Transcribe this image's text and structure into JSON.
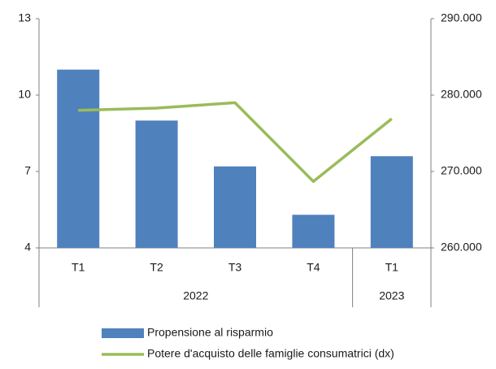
{
  "chart_data": {
    "type": "bar",
    "categories": [
      "T1",
      "T2",
      "T3",
      "T4",
      "T1"
    ],
    "x_groups": [
      {
        "label": "2022",
        "size": 4
      },
      {
        "label": "2023",
        "size": 1
      }
    ],
    "series": [
      {
        "name": "Propensione al risparmio",
        "type": "bar",
        "color": "#4f81bd",
        "values": [
          11.0,
          9.0,
          7.2,
          5.3,
          7.6
        ]
      },
      {
        "name": "Potere d'acquisto delle famiglie consumatrici (dx)",
        "type": "line",
        "axis": "y2",
        "color": "#9bbb59",
        "values": [
          278000,
          278300,
          279000,
          268700,
          276900
        ]
      }
    ],
    "ylim": [
      4,
      13
    ],
    "yticks": [
      4,
      7,
      10,
      13
    ],
    "y2lim": [
      260000,
      290000
    ],
    "y2ticks": [
      {
        "value": 260000,
        "label": "260.000"
      },
      {
        "value": 270000,
        "label": "270.000"
      },
      {
        "value": 280000,
        "label": "280.000"
      },
      {
        "value": 290000,
        "label": "290.000"
      }
    ],
    "grid": false,
    "legend": "bottom"
  }
}
